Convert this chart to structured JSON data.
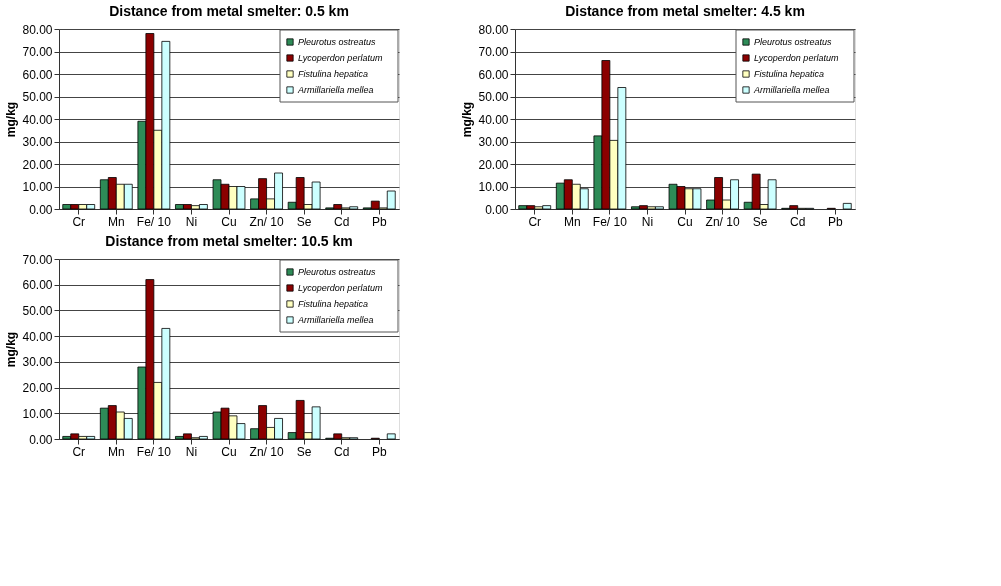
{
  "chart_data": [
    {
      "type": "bar",
      "title": "Distance from metal smelter: 0.5 km",
      "ylabel": "mg/kg",
      "categories": [
        "Cr",
        "Mn",
        "Fe/ 10",
        "Ni",
        "Cu",
        "Zn/ 10",
        "Se",
        "Cd",
        "Pb"
      ],
      "ylim": [
        0,
        80
      ],
      "yticks": [
        {
          "value": 0,
          "label": "0.00"
        },
        {
          "value": 10,
          "label": "10.00"
        },
        {
          "value": 20,
          "label": "20.00"
        },
        {
          "value": 30,
          "label": "30.00"
        },
        {
          "value": 40,
          "label": "40.00"
        },
        {
          "value": 50,
          "label": "50.00"
        },
        {
          "value": 60,
          "label": "60.00"
        },
        {
          "value": 70,
          "label": "70.00"
        },
        {
          "value": 80,
          "label": "80.00"
        }
      ],
      "grid": "y",
      "legend": "top right",
      "series": [
        {
          "name": "Pleurotus ostreatus",
          "color": "#2e8b57",
          "values": [
            2,
            13,
            39,
            2,
            13,
            4.5,
            3,
            0.5,
            0.5
          ]
        },
        {
          "name": "Lycoperdon perlatum",
          "color": "#8b0000",
          "values": [
            2,
            14,
            78,
            2,
            11,
            13.5,
            14,
            2,
            3.5
          ]
        },
        {
          "name": "Fistulina hepatica",
          "color": "#ffffc0",
          "values": [
            2,
            11,
            35,
            1.5,
            10,
            4.5,
            2,
            0.5,
            0.5
          ]
        },
        {
          "name": "Armillariella mellea",
          "color": "#ccffff",
          "values": [
            2,
            11,
            74.5,
            2,
            10,
            16,
            12,
            1,
            8
          ]
        }
      ]
    },
    {
      "type": "bar",
      "title": "Distance from metal smelter: 4.5 km",
      "ylabel": "mg/kg",
      "categories": [
        "Cr",
        "Mn",
        "Fe/ 10",
        "Ni",
        "Cu",
        "Zn/ 10",
        "Se",
        "Cd",
        "Pb"
      ],
      "ylim": [
        0,
        80
      ],
      "yticks": [
        {
          "value": 0,
          "label": "0.00"
        },
        {
          "value": 10,
          "label": "10.00"
        },
        {
          "value": 20,
          "label": "20.00"
        },
        {
          "value": 30,
          "label": "30.00"
        },
        {
          "value": 40,
          "label": "40.00"
        },
        {
          "value": 50,
          "label": "50.00"
        },
        {
          "value": 60,
          "label": "60.00"
        },
        {
          "value": 70,
          "label": "70.00"
        },
        {
          "value": 80,
          "label": "80.00"
        }
      ],
      "grid": "y",
      "legend": "top right",
      "series": [
        {
          "name": "Pleurotus ostreatus",
          "color": "#2e8b57",
          "values": [
            1.5,
            11.5,
            32.5,
            1,
            11,
            4,
            3,
            0.3,
            null
          ]
        },
        {
          "name": "Lycoperdon perlatum",
          "color": "#8b0000",
          "values": [
            1.5,
            13,
            66,
            1.5,
            10,
            14,
            15.5,
            1.5,
            0.3
          ]
        },
        {
          "name": "Fistulina hepatica",
          "color": "#ffffc0",
          "values": [
            1,
            11,
            30.5,
            1,
            9,
            4,
            2,
            0.3,
            null
          ]
        },
        {
          "name": "Armillariella mellea",
          "color": "#ccffff",
          "values": [
            1.5,
            9,
            54,
            1,
            9,
            13,
            13,
            0.3,
            2.5
          ]
        }
      ]
    },
    {
      "type": "bar",
      "title": "Distance from metal smelter: 10.5 km",
      "ylabel": "mg/kg",
      "categories": [
        "Cr",
        "Mn",
        "Fe/ 10",
        "Ni",
        "Cu",
        "Zn/ 10",
        "Se",
        "Cd",
        "Pb"
      ],
      "ylim": [
        0,
        70
      ],
      "yticks": [
        {
          "value": 0,
          "label": "0.00"
        },
        {
          "value": 10,
          "label": "10.00"
        },
        {
          "value": 20,
          "label": "20.00"
        },
        {
          "value": 30,
          "label": "30.00"
        },
        {
          "value": 40,
          "label": "40.00"
        },
        {
          "value": 50,
          "label": "50.00"
        },
        {
          "value": 60,
          "label": "60.00"
        },
        {
          "value": 70,
          "label": "70.00"
        }
      ],
      "grid": "y",
      "legend": "top right",
      "series": [
        {
          "name": "Pleurotus ostreatus",
          "color": "#2e8b57",
          "values": [
            1,
            12,
            28,
            1,
            10.5,
            4,
            2.5,
            0.3,
            null
          ]
        },
        {
          "name": "Lycoperdon perlatum",
          "color": "#8b0000",
          "values": [
            2,
            13,
            62,
            2,
            12,
            13,
            15,
            2,
            0.3
          ]
        },
        {
          "name": "Fistulina hepatica",
          "color": "#ffffc0",
          "values": [
            1,
            10.5,
            22,
            0.5,
            9,
            4.5,
            2.5,
            0.5,
            null
          ]
        },
        {
          "name": "Armillariella mellea",
          "color": "#ccffff",
          "values": [
            1,
            8,
            43,
            1,
            6,
            8,
            12.5,
            0.5,
            2
          ]
        }
      ]
    }
  ]
}
